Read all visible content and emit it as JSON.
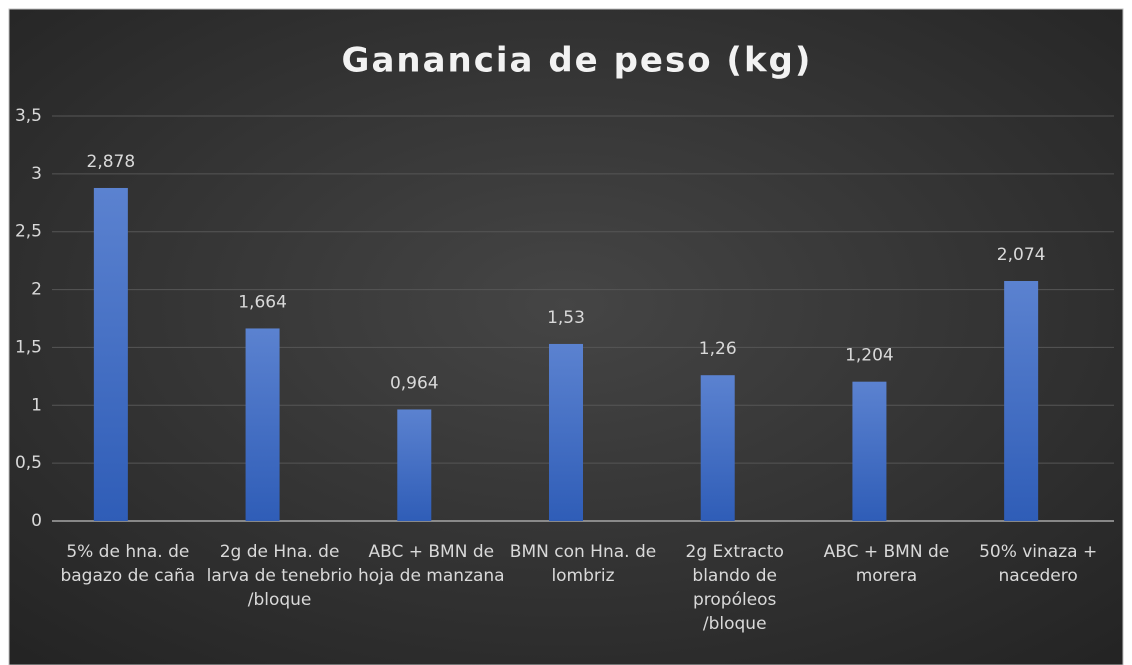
{
  "chart_data": {
    "type": "bar",
    "title": "Ganancia de peso (kg)",
    "categories": [
      "5% de hna. de bagazo de caña",
      "2g de Hna. de larva de tenebrio /bloque",
      "ABC + BMN de hoja de manzana",
      "BMN con Hna. de lombriz",
      "2g Extracto blando de propóleos /bloque",
      "ABC + BMN de morera",
      "50% vinaza + nacedero"
    ],
    "values": [
      2.878,
      1.664,
      0.964,
      1.53,
      1.26,
      1.204,
      2.074
    ],
    "value_labels": [
      "2,878",
      "1,664",
      "0,964",
      "1,53",
      "1,26",
      "1,204",
      "2,074"
    ],
    "color": "#4472c4",
    "ylim": [
      0,
      3.5
    ],
    "yticks": [
      0,
      {
        "value": 0.5,
        "label": "0,5"
      },
      1,
      {
        "value": 1.5,
        "label": "1,5"
      },
      2,
      {
        "value": 2.5,
        "label": "2,5"
      },
      3,
      {
        "value": 3.5,
        "label": "3,5"
      }
    ],
    "grid": true
  }
}
